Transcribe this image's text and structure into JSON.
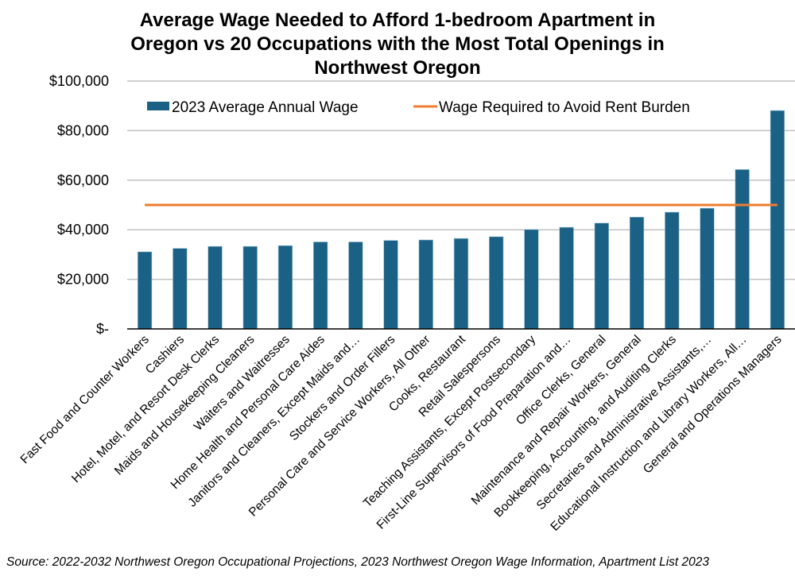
{
  "chart_data": {
    "type": "bar",
    "title": "Average Wage Needed to Afford 1-bedroom Apartment in Oregon vs 20 Occupations with the Most Total Openings in Northwest Oregon",
    "title_lines": [
      "Average Wage Needed to Afford 1-bedroom Apartment in",
      "Oregon vs 20 Occupations with the Most Total Openings in",
      "Northwest Oregon"
    ],
    "xlabel": "",
    "ylabel": "",
    "ylim": [
      0,
      100000
    ],
    "yticks": [
      0,
      20000,
      40000,
      60000,
      80000,
      100000
    ],
    "ytick_labels": [
      "$-",
      "$20,000",
      "$40,000",
      "$60,000",
      "$80,000",
      "$100,000"
    ],
    "grid": true,
    "legend_position": "top",
    "categories": [
      "Fast Food and Counter Workers",
      "Cashiers",
      "Hotel, Motel, and Resort Desk Clerks",
      "Maids and Housekeeping Cleaners",
      "Waiters and Waitresses",
      "Home Health and Personal Care Aides",
      "Janitors and Cleaners, Except Maids and…",
      "Stockers and Order Fillers",
      "Personal Care and Service Workers, All Other",
      "Cooks, Restaurant",
      "Retail Salespersons",
      "Teaching Assistants, Except Postsecondary",
      "First-Line Supervisors of Food Preparation and…",
      "Office Clerks, General",
      "Maintenance and Repair Workers, General",
      "Bookkeeping, Accounting, and Auditing Clerks",
      "Secretaries and Administrative Assistants,…",
      "Educational Instruction and Library Workers, All…",
      "General and Operations Managers"
    ],
    "series": [
      {
        "name": "2023 Average Annual Wage",
        "type": "bar",
        "color": "#1a6185",
        "values": [
          31100,
          32500,
          33300,
          33300,
          33600,
          35100,
          35100,
          35700,
          35900,
          36500,
          37200,
          40100,
          41000,
          42700,
          45100,
          47100,
          48700,
          64300,
          88100
        ]
      },
      {
        "name": "Wage Required to Avoid Rent Burden",
        "type": "line",
        "color": "#ed7d31",
        "values": [
          50000,
          50000,
          50000,
          50000,
          50000,
          50000,
          50000,
          50000,
          50000,
          50000,
          50000,
          50000,
          50000,
          50000,
          50000,
          50000,
          50000,
          50000,
          50000
        ]
      }
    ],
    "source": "Source: 2022-2032 Northwest Oregon Occupational Projections, 2023 Northwest Oregon Wage Information, Apartment List 2023"
  }
}
